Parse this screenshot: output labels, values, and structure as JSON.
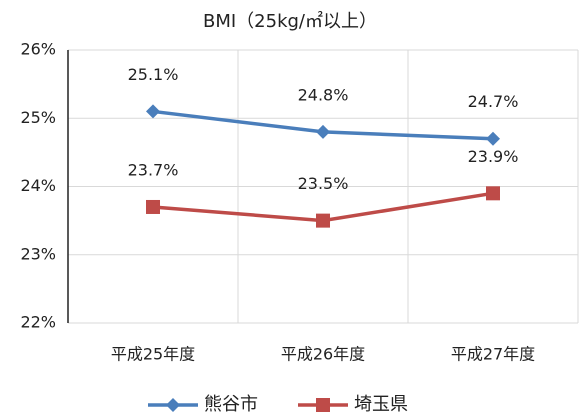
{
  "chart_data": {
    "type": "line",
    "title": "BMI（25kg/㎡以上）",
    "categories": [
      "平成25年度",
      "平成26年度",
      "平成27年度"
    ],
    "series": [
      {
        "name": "熊谷市",
        "color": "#4a7ebb",
        "marker": "diamond",
        "values": [
          25.1,
          24.8,
          24.7
        ],
        "value_labels": [
          "25.1%",
          "24.8%",
          "24.7%"
        ]
      },
      {
        "name": "埼玉県",
        "color": "#be4b48",
        "marker": "square",
        "values": [
          23.7,
          23.5,
          23.9
        ],
        "value_labels": [
          "23.7%",
          "23.5%",
          "23.9%"
        ]
      }
    ],
    "ylim": [
      22,
      26
    ],
    "yticks": [
      {
        "value": 22,
        "label": "22%"
      },
      {
        "value": 23,
        "label": "23%"
      },
      {
        "value": 24,
        "label": "24%"
      },
      {
        "value": 25,
        "label": "25%"
      },
      {
        "value": 26,
        "label": "26%"
      }
    ],
    "grid": true,
    "legend": "bottom"
  }
}
